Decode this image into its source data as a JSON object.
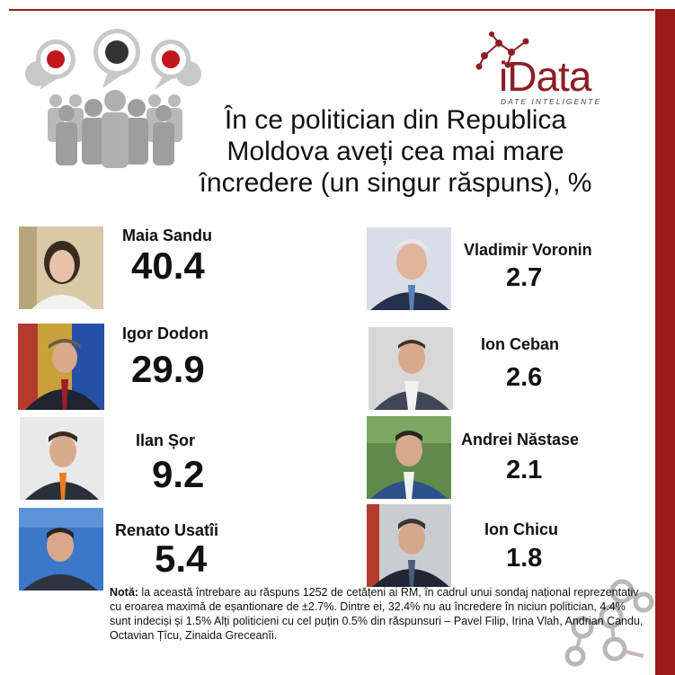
{
  "title": "În ce politician din Republica\nMoldova aveți cea mai mare\nîncredere (un singur răspuns), %",
  "brand": {
    "name": "Data",
    "tagline": "DATE INTELIGENTE"
  },
  "colors": {
    "accent": "#9b1b1b",
    "logo": "#8b1f24",
    "text": "#111111"
  },
  "chart_data": {
    "type": "table",
    "title": "În ce politician din Republica Moldova aveți cea mai mare încredere (un singur răspuns), %",
    "categories": [
      "Maia Sandu",
      "Igor Dodon",
      "Ilan Șor",
      "Renato Usatîi",
      "Vladimir Voronin",
      "Ion Ceban",
      "Andrei Năstase",
      "Ion Chicu"
    ],
    "values": [
      40.4,
      29.9,
      9.2,
      5.4,
      2.7,
      2.6,
      2.1,
      1.8
    ]
  },
  "politicians_left": [
    {
      "name": "Maia Sandu",
      "value": "40.4"
    },
    {
      "name": "Igor Dodon",
      "value": "29.9"
    },
    {
      "name": "Ilan Șor",
      "value": "9.2"
    },
    {
      "name": "Renato Usatîi",
      "value": "5.4"
    }
  ],
  "politicians_right": [
    {
      "name": "Vladimir Voronin",
      "value": "2.7"
    },
    {
      "name": "Ion Ceban",
      "value": "2.6"
    },
    {
      "name": "Andrei Năstase",
      "value": "2.1"
    },
    {
      "name": "Ion Chicu",
      "value": "1.8"
    }
  ],
  "note": {
    "label": "Notă:",
    "text": " la această întrebare au răspuns 1252 de cetățeni ai RM, în cadrul unui sondaj național reprezentativ cu eroarea maximă de eșantionare de ±2.7%. Dintre ei, 32.4% nu au încredere în niciun politician, 4.4% sunt indeciși și 1.5% Alți politicieni cu cel puțin 0.5% din răspunsuri – Pavel Filip, Irina Vlah, Andrian Candu, Octavian Țîcu, Zinaida Greceanîi."
  }
}
